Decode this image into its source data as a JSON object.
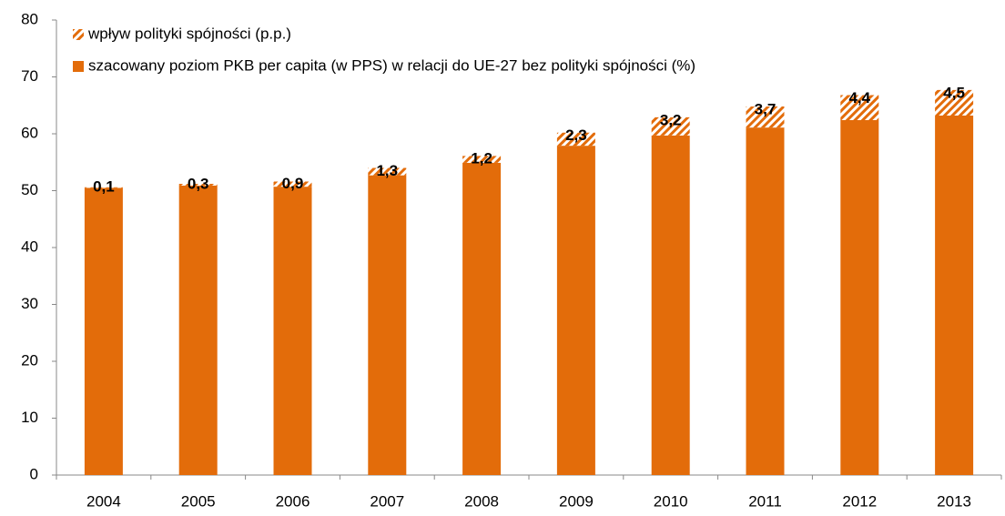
{
  "chart_data": {
    "type": "stacked_bar",
    "categories": [
      "2004",
      "2005",
      "2006",
      "2007",
      "2008",
      "2009",
      "2010",
      "2011",
      "2012",
      "2013"
    ],
    "series": [
      {
        "name": "szacowany poziom PKB per capita (w PPS) w relacji do UE-27 bez polityki spójności (%)",
        "color": "#e36c0a",
        "values": [
          50.5,
          50.9,
          50.7,
          52.7,
          54.9,
          57.9,
          59.7,
          61.1,
          62.4,
          63.2
        ]
      },
      {
        "name": "wpływ polityki spójności (p.p.)",
        "color": "#e36c0a",
        "pattern": "hatch",
        "values": [
          0.1,
          0.3,
          0.9,
          1.3,
          1.2,
          2.3,
          3.2,
          3.7,
          4.4,
          4.5
        ],
        "value_labels": [
          "0,1",
          "0,3",
          "0,9",
          "1,3",
          "1,2",
          "2,3",
          "3,2",
          "3,7",
          "4,4",
          "4,5"
        ]
      }
    ],
    "ylim": [
      0,
      80
    ],
    "yticks": [
      0,
      10,
      20,
      30,
      40,
      50,
      60,
      70,
      80
    ],
    "grid": false
  }
}
